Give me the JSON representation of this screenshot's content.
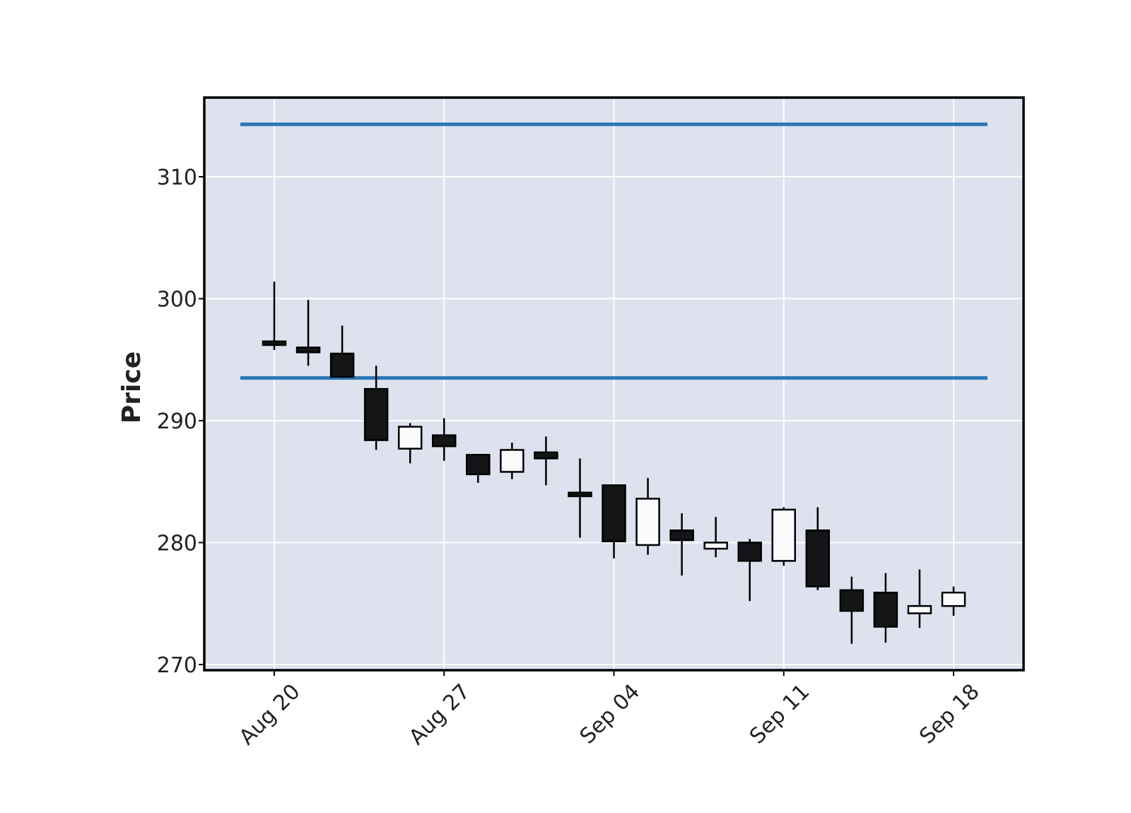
{
  "chart_data": {
    "type": "candlestick",
    "title": "",
    "xlabel": "",
    "ylabel": "Price",
    "ylim": [
      269.5,
      316.5
    ],
    "y_ticks": [
      270,
      280,
      290,
      300,
      310
    ],
    "x_ticks": [
      {
        "date": "2018-08-20",
        "label": "Aug 20"
      },
      {
        "date": "2018-08-27",
        "label": "Aug 27"
      },
      {
        "date": "2018-09-04",
        "label": "Sep 04"
      },
      {
        "date": "2018-09-11",
        "label": "Sep 11"
      },
      {
        "date": "2018-09-18",
        "label": "Sep 18"
      }
    ],
    "grid": true,
    "hlines": [
      314.3,
      293.5
    ],
    "colors": {
      "plot_background": "#dde2ee",
      "grid": "#ffffff",
      "up_body": "#fbfbfd",
      "down_body": "#151517",
      "edge": "#000000",
      "hline": "#2a77b4"
    },
    "candles": [
      {
        "date": "2018-08-20",
        "open": 296.5,
        "high": 301.4,
        "low": 295.8,
        "close": 296.2
      },
      {
        "date": "2018-08-21",
        "open": 296.0,
        "high": 299.9,
        "low": 294.5,
        "close": 295.6
      },
      {
        "date": "2018-08-22",
        "open": 295.5,
        "high": 297.8,
        "low": 293.5,
        "close": 293.6
      },
      {
        "date": "2018-08-23",
        "open": 292.6,
        "high": 294.5,
        "low": 287.6,
        "close": 288.4
      },
      {
        "date": "2018-08-24",
        "open": 287.7,
        "high": 289.8,
        "low": 286.5,
        "close": 289.5
      },
      {
        "date": "2018-08-27",
        "open": 288.8,
        "high": 290.2,
        "low": 286.7,
        "close": 287.9
      },
      {
        "date": "2018-08-28",
        "open": 287.2,
        "high": 287.2,
        "low": 284.9,
        "close": 285.6
      },
      {
        "date": "2018-08-29",
        "open": 285.8,
        "high": 288.2,
        "low": 285.2,
        "close": 287.6
      },
      {
        "date": "2018-08-30",
        "open": 287.4,
        "high": 288.7,
        "low": 284.7,
        "close": 286.9
      },
      {
        "date": "2018-08-31",
        "open": 284.1,
        "high": 286.9,
        "low": 280.4,
        "close": 283.8
      },
      {
        "date": "2018-09-04",
        "open": 284.7,
        "high": 284.7,
        "low": 278.7,
        "close": 280.1
      },
      {
        "date": "2018-09-05",
        "open": 279.8,
        "high": 285.3,
        "low": 279.0,
        "close": 283.6
      },
      {
        "date": "2018-09-06",
        "open": 281.0,
        "high": 282.4,
        "low": 277.3,
        "close": 280.2
      },
      {
        "date": "2018-09-07",
        "open": 279.5,
        "high": 282.1,
        "low": 278.8,
        "close": 280.0
      },
      {
        "date": "2018-09-10",
        "open": 280.0,
        "high": 280.3,
        "low": 275.2,
        "close": 278.5
      },
      {
        "date": "2018-09-11",
        "open": 278.5,
        "high": 282.9,
        "low": 278.1,
        "close": 282.7
      },
      {
        "date": "2018-09-12",
        "open": 281.0,
        "high": 282.9,
        "low": 276.1,
        "close": 276.4
      },
      {
        "date": "2018-09-13",
        "open": 276.1,
        "high": 277.2,
        "low": 271.7,
        "close": 274.4
      },
      {
        "date": "2018-09-14",
        "open": 275.9,
        "high": 277.5,
        "low": 271.8,
        "close": 273.1
      },
      {
        "date": "2018-09-17",
        "open": 274.2,
        "high": 277.8,
        "low": 273.0,
        "close": 274.8
      },
      {
        "date": "2018-09-18",
        "open": 274.8,
        "high": 276.4,
        "low": 274.0,
        "close": 275.9
      }
    ]
  }
}
